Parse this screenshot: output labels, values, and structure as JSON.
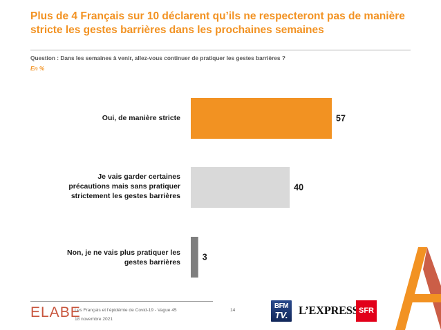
{
  "header": {
    "title": "Plus de 4 Français sur 10 déclarent qu’ils ne respecteront pas de manière stricte les gestes barrières dans les prochaines semaines",
    "question": "Question : Dans les semaines à venir, allez-vous continuer de pratiquer les gestes barrières ?",
    "unit": "En %"
  },
  "chart_data": {
    "type": "bar",
    "orientation": "horizontal",
    "categories": [
      "Oui, de manière stricte",
      "Je vais garder certaines précautions mais sans pratiquer strictement les gestes barrières",
      "Non, je ne vais plus pratiquer les gestes barrières"
    ],
    "values": [
      57,
      40,
      3
    ],
    "colors": [
      "#f29222",
      "#d9d9d9",
      "#7f7f7f"
    ],
    "grid": false,
    "legend": "none"
  },
  "footer": {
    "logo": "ELABE",
    "line1": "Les Français et l’épidémie de Covid-19 - Vague 45",
    "line2": "18 novembre 2021",
    "page": "14",
    "partners": {
      "bfm_top": "BFM",
      "bfm_bottom": "TV.",
      "express": "L’EXPRESS",
      "sfr": "SFR"
    }
  },
  "colors": {
    "accent": "#f29222",
    "brand": "#c8553d",
    "bar_mid": "#d9d9d9",
    "bar_low": "#7f7f7f"
  }
}
